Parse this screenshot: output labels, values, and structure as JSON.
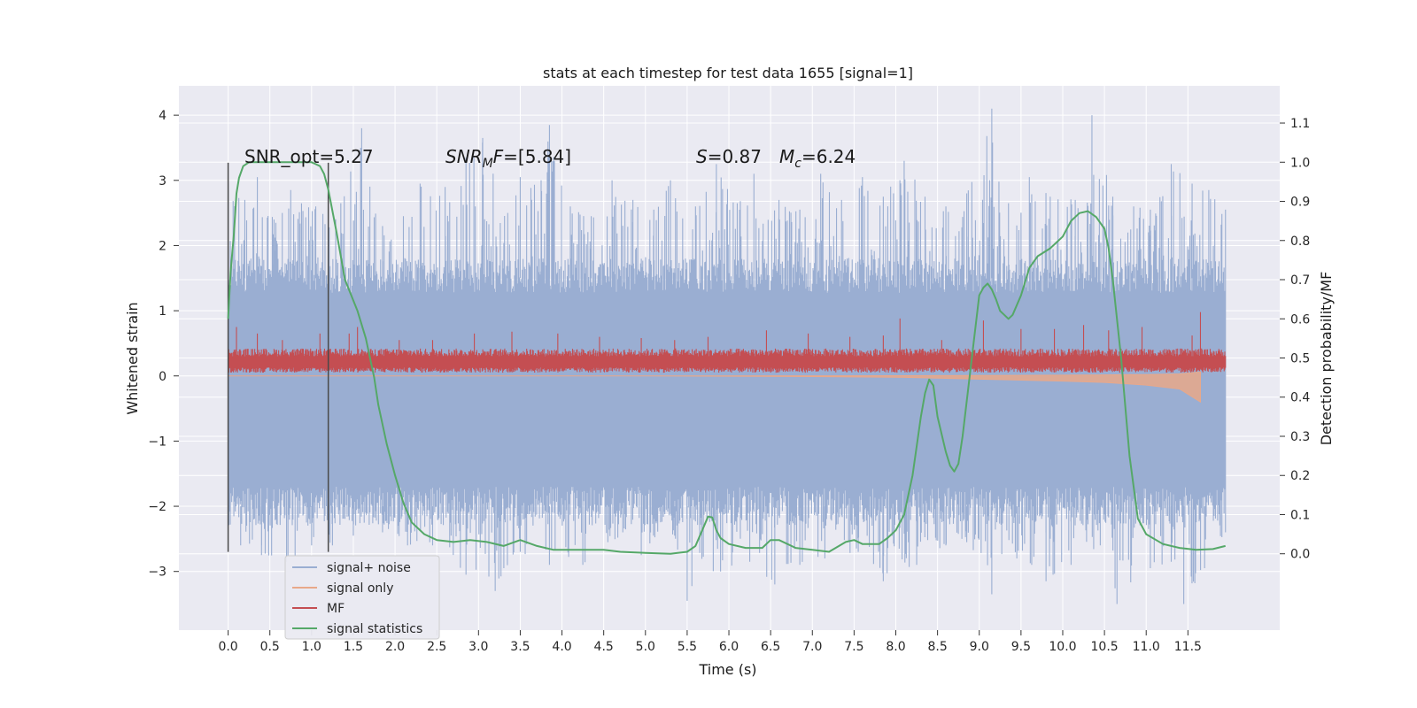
{
  "chart_data": {
    "type": "line",
    "title": "stats at each timestep for test data 1655 [signal=1]",
    "xlabel": "Time (s)",
    "ylabel": "Whitened strain",
    "y2label": "Detection probability/MF",
    "xlim": [
      -0.59,
      12.6
    ],
    "ylim": [
      -3.9,
      4.45
    ],
    "y2lim": [
      -0.195,
      1.195
    ],
    "xticks": [
      "0.0",
      "0.5",
      "1.0",
      "1.5",
      "2.0",
      "2.5",
      "3.0",
      "3.5",
      "4.0",
      "4.5",
      "5.0",
      "5.5",
      "6.0",
      "6.5",
      "7.0",
      "7.5",
      "8.0",
      "8.5",
      "9.0",
      "9.5",
      "10.0",
      "10.5",
      "11.0",
      "11.5"
    ],
    "yticks": [
      "4",
      "3",
      "2",
      "1",
      "0",
      "−1",
      "−2",
      "−3"
    ],
    "y2ticks": [
      "1.1",
      "1.0",
      "0.9",
      "0.8",
      "0.7",
      "0.6",
      "0.5",
      "0.4",
      "0.3",
      "0.2",
      "0.1",
      "0.0"
    ],
    "grid": true,
    "legend_position": "lower-left",
    "colors": {
      "plot_bg": "#eaeaf2",
      "grid": "#ffffff",
      "noise": "#9aaed2",
      "signal_only": "#e8a88a",
      "mf": "#c44e52",
      "stats": "#55a868",
      "vline": "#4a4a4a"
    },
    "annotations": {
      "snr_opt": "SNR_opt=5.27",
      "snr_mf_main": "SNR",
      "snr_mf_sub": "M",
      "snr_mf_rest": "F=[5.84]",
      "s_var": "S",
      "s_value": "=0.87",
      "mc_var": "M",
      "mc_sub": "c",
      "mc_value": "=6.24"
    },
    "marker_lines_x": [
      0.0,
      1.2
    ],
    "series": [
      {
        "name": "signal+ noise",
        "axis": "left",
        "x": [
          0.0,
          11.95
        ],
        "envelope_upper_typical": 1.5,
        "envelope_lower_typical": -2.0,
        "peaks_upper": [
          [
            0.0,
            2.95
          ],
          [
            0.2,
            2.7
          ],
          [
            0.35,
            3.05
          ],
          [
            0.55,
            2.4
          ],
          [
            0.75,
            2.85
          ],
          [
            1.05,
            2.6
          ],
          [
            1.35,
            2.65
          ],
          [
            1.6,
            3.8
          ],
          [
            1.85,
            2.3
          ],
          [
            2.1,
            2.45
          ],
          [
            2.3,
            2.95
          ],
          [
            2.6,
            2.9
          ],
          [
            2.85,
            3.35
          ],
          [
            3.05,
            3.65
          ],
          [
            3.35,
            2.5
          ],
          [
            3.5,
            3.05
          ],
          [
            3.75,
            3.0
          ],
          [
            3.85,
            3.85
          ],
          [
            4.1,
            2.6
          ],
          [
            4.35,
            2.45
          ],
          [
            4.6,
            3.0
          ],
          [
            4.85,
            2.7
          ],
          [
            5.1,
            2.55
          ],
          [
            5.3,
            3.0
          ],
          [
            5.6,
            2.6
          ],
          [
            5.85,
            3.25
          ],
          [
            6.1,
            2.65
          ],
          [
            6.3,
            3.1
          ],
          [
            6.6,
            2.7
          ],
          [
            6.85,
            2.55
          ],
          [
            7.1,
            3.1
          ],
          [
            7.35,
            2.7
          ],
          [
            7.6,
            3.05
          ],
          [
            7.85,
            2.75
          ],
          [
            8.1,
            3.3
          ],
          [
            8.35,
            2.75
          ],
          [
            8.6,
            2.6
          ],
          [
            8.85,
            2.8
          ],
          [
            9.15,
            4.1
          ],
          [
            9.35,
            2.65
          ],
          [
            9.6,
            3.05
          ],
          [
            9.85,
            2.75
          ],
          [
            10.15,
            2.7
          ],
          [
            10.35,
            4.0
          ],
          [
            10.6,
            2.75
          ],
          [
            10.85,
            2.6
          ],
          [
            11.05,
            2.55
          ],
          [
            11.3,
            3.25
          ],
          [
            11.55,
            2.95
          ],
          [
            11.75,
            2.85
          ],
          [
            11.95,
            2.55
          ]
        ],
        "peaks_lower": [
          [
            0.0,
            -1.4
          ],
          [
            0.15,
            -2.6
          ],
          [
            0.4,
            -2.75
          ],
          [
            0.7,
            -2.85
          ],
          [
            1.0,
            -2.6
          ],
          [
            1.25,
            -2.6
          ],
          [
            1.5,
            -2.45
          ],
          [
            1.85,
            -2.4
          ],
          [
            2.15,
            -2.6
          ],
          [
            2.45,
            -2.6
          ],
          [
            2.85,
            -3.05
          ],
          [
            3.2,
            -3.3
          ],
          [
            3.5,
            -2.7
          ],
          [
            3.85,
            -2.9
          ],
          [
            4.25,
            -2.9
          ],
          [
            4.55,
            -2.55
          ],
          [
            4.95,
            -2.75
          ],
          [
            5.35,
            -2.45
          ],
          [
            5.5,
            -3.45
          ],
          [
            5.9,
            -3.0
          ],
          [
            6.25,
            -2.85
          ],
          [
            6.55,
            -3.2
          ],
          [
            6.85,
            -2.9
          ],
          [
            7.15,
            -2.8
          ],
          [
            7.55,
            -2.7
          ],
          [
            7.85,
            -3.15
          ],
          [
            8.25,
            -2.9
          ],
          [
            8.6,
            -2.6
          ],
          [
            8.85,
            -2.55
          ],
          [
            9.15,
            -3.35
          ],
          [
            9.45,
            -2.8
          ],
          [
            9.8,
            -3.15
          ],
          [
            10.1,
            -2.9
          ],
          [
            10.45,
            -2.6
          ],
          [
            10.65,
            -3.5
          ],
          [
            11.05,
            -2.95
          ],
          [
            11.3,
            -2.85
          ],
          [
            11.45,
            -3.5
          ],
          [
            11.7,
            -2.95
          ],
          [
            11.95,
            -2.4
          ]
        ]
      },
      {
        "name": "signal only",
        "axis": "left",
        "x": [
          0.0,
          5.0,
          7.0,
          8.0,
          9.0,
          10.0,
          10.5,
          11.0,
          11.4,
          11.65
        ],
        "y": [
          0.0,
          0.0,
          -0.01,
          -0.02,
          -0.05,
          -0.08,
          -0.1,
          -0.14,
          -0.2,
          -0.4
        ]
      },
      {
        "name": "MF",
        "axis": "left",
        "x": [
          0.0,
          11.95
        ],
        "base": 0.2,
        "band_low": 0.05,
        "band_high": 0.4,
        "spikes": [
          [
            0.1,
            0.75
          ],
          [
            0.35,
            0.65
          ],
          [
            0.65,
            0.55
          ],
          [
            1.1,
            0.65
          ],
          [
            1.45,
            0.65
          ],
          [
            1.55,
            0.75
          ],
          [
            2.05,
            0.55
          ],
          [
            2.45,
            0.55
          ],
          [
            2.95,
            0.65
          ],
          [
            3.4,
            0.68
          ],
          [
            3.95,
            0.65
          ],
          [
            4.45,
            0.6
          ],
          [
            4.95,
            0.58
          ],
          [
            5.35,
            0.55
          ],
          [
            5.75,
            0.6
          ],
          [
            6.45,
            0.7
          ],
          [
            6.95,
            0.65
          ],
          [
            7.45,
            0.6
          ],
          [
            7.85,
            0.62
          ],
          [
            8.05,
            0.88
          ],
          [
            8.55,
            0.55
          ],
          [
            9.05,
            0.85
          ],
          [
            9.5,
            0.72
          ],
          [
            9.9,
            0.72
          ],
          [
            10.25,
            0.78
          ],
          [
            10.55,
            0.7
          ],
          [
            10.95,
            0.75
          ],
          [
            11.55,
            0.62
          ],
          [
            11.65,
            0.98
          ]
        ]
      },
      {
        "name": "signal statistics",
        "axis": "right",
        "x": [
          0.0,
          0.03,
          0.07,
          0.1,
          0.13,
          0.18,
          0.25,
          0.35,
          0.5,
          0.7,
          0.9,
          1.0,
          1.05,
          1.1,
          1.15,
          1.2,
          1.3,
          1.4,
          1.55,
          1.65,
          1.75,
          1.8,
          1.9,
          2.0,
          2.1,
          2.2,
          2.35,
          2.5,
          2.7,
          2.9,
          3.1,
          3.3,
          3.5,
          3.7,
          3.9,
          4.1,
          4.3,
          4.5,
          4.7,
          5.0,
          5.3,
          5.5,
          5.6,
          5.7,
          5.75,
          5.8,
          5.85,
          5.9,
          6.0,
          6.2,
          6.4,
          6.5,
          6.6,
          6.8,
          7.0,
          7.2,
          7.4,
          7.5,
          7.6,
          7.8,
          7.9,
          8.0,
          8.1,
          8.2,
          8.3,
          8.35,
          8.4,
          8.45,
          8.5,
          8.6,
          8.65,
          8.7,
          8.75,
          8.8,
          8.9,
          9.0,
          9.05,
          9.1,
          9.15,
          9.2,
          9.25,
          9.3,
          9.35,
          9.4,
          9.5,
          9.6,
          9.7,
          9.85,
          10.0,
          10.1,
          10.2,
          10.3,
          10.4,
          10.5,
          10.55,
          10.6,
          10.7,
          10.8,
          10.9,
          11.0,
          11.2,
          11.4,
          11.6,
          11.8,
          11.95
        ],
        "y": [
          0.6,
          0.72,
          0.82,
          0.92,
          0.96,
          0.99,
          1.0,
          1.0,
          1.0,
          1.0,
          1.0,
          1.0,
          0.995,
          0.99,
          0.97,
          0.93,
          0.82,
          0.7,
          0.62,
          0.55,
          0.45,
          0.38,
          0.28,
          0.2,
          0.13,
          0.08,
          0.05,
          0.035,
          0.03,
          0.035,
          0.03,
          0.02,
          0.035,
          0.02,
          0.01,
          0.01,
          0.01,
          0.01,
          0.005,
          0.002,
          0.0,
          0.005,
          0.02,
          0.07,
          0.095,
          0.093,
          0.06,
          0.04,
          0.025,
          0.015,
          0.015,
          0.035,
          0.035,
          0.015,
          0.01,
          0.005,
          0.03,
          0.035,
          0.025,
          0.025,
          0.04,
          0.06,
          0.1,
          0.2,
          0.35,
          0.41,
          0.445,
          0.43,
          0.35,
          0.26,
          0.225,
          0.21,
          0.23,
          0.3,
          0.48,
          0.66,
          0.68,
          0.69,
          0.675,
          0.65,
          0.62,
          0.61,
          0.6,
          0.61,
          0.66,
          0.73,
          0.76,
          0.78,
          0.81,
          0.85,
          0.87,
          0.875,
          0.86,
          0.83,
          0.78,
          0.7,
          0.5,
          0.25,
          0.09,
          0.05,
          0.025,
          0.015,
          0.01,
          0.012,
          0.02
        ]
      }
    ]
  }
}
